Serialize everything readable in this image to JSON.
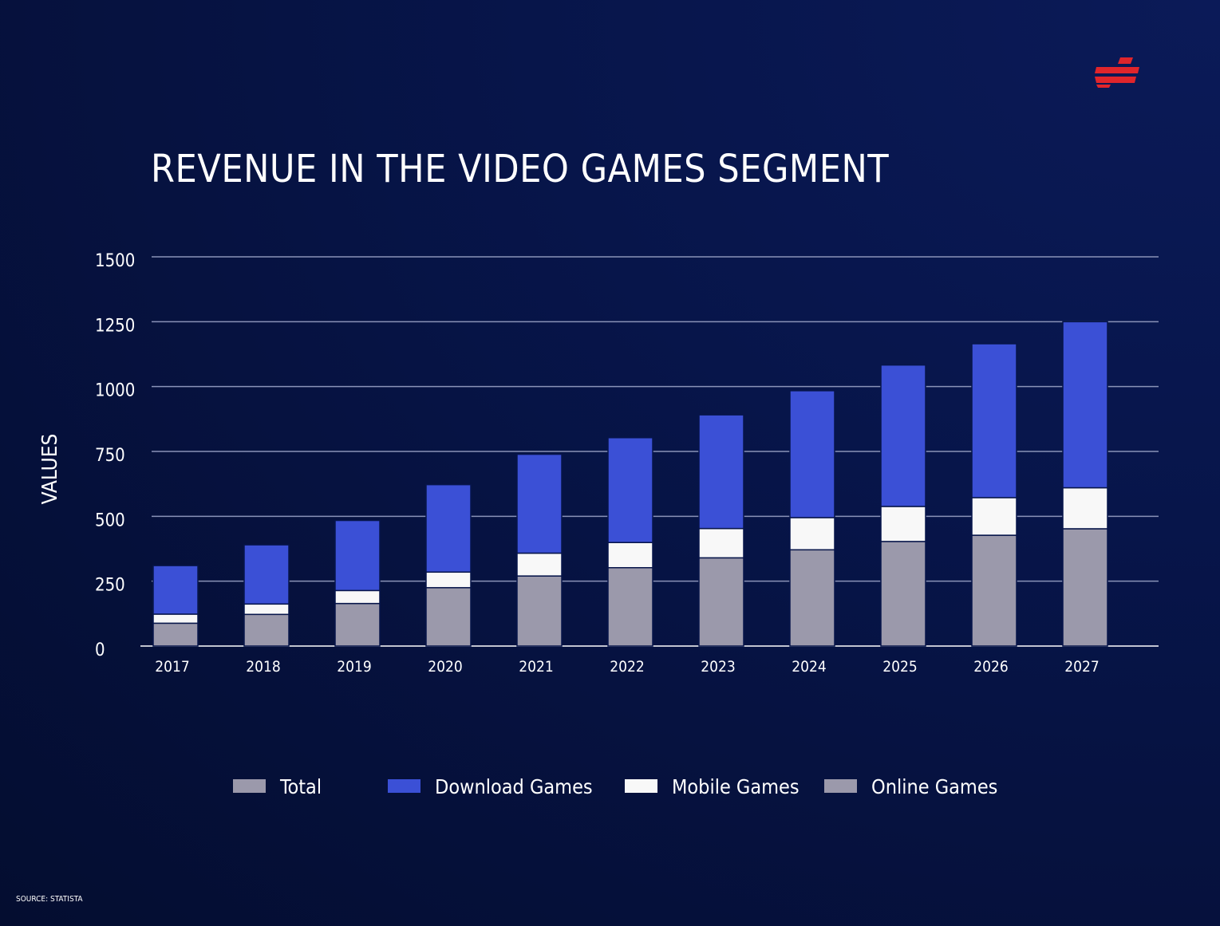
{
  "chart_data": {
    "type": "bar",
    "stacked": true,
    "title": "REVENUE IN THE VIDEO GAMES SEGMENT",
    "ylabel": "VALUES",
    "xlabel": "",
    "ylim": [
      0,
      1500
    ],
    "yticks": [
      0,
      250,
      500,
      750,
      1000,
      1250,
      1500
    ],
    "grid": true,
    "legend_position": "bottom",
    "categories": [
      "2017",
      "2018",
      "2019",
      "2020",
      "2021",
      "2022",
      "2023",
      "2024",
      "2025",
      "2026",
      "2027"
    ],
    "series": [
      {
        "name": "Total",
        "color": "#9b99ab",
        "values": [
          0,
          0,
          0,
          0,
          0,
          0,
          0,
          0,
          0,
          0,
          0
        ]
      },
      {
        "name": "Online Games",
        "color": "#9b99ab",
        "values": [
          88,
          122,
          164,
          225,
          270,
          302,
          340,
          371,
          403,
          427,
          452
        ]
      },
      {
        "name": "Mobile Games",
        "color": "#f8f8f8",
        "values": [
          35,
          40,
          50,
          60,
          88,
          97,
          113,
          124,
          135,
          145,
          158
        ]
      },
      {
        "name": "Download Games",
        "color": "#3b50d6",
        "values": [
          187,
          228,
          270,
          337,
          381,
          404,
          438,
          489,
          545,
          593,
          640
        ]
      }
    ],
    "legend": [
      "Total",
      "Download Games",
      "Mobile Games",
      "Online Games"
    ]
  },
  "source": "SOURCE: STATISTA",
  "colors": {
    "background": "#07154a",
    "grid": "#8a93b8",
    "brand_red": "#e0252b"
  },
  "logo": {
    "name": "brand-logo-icon"
  }
}
